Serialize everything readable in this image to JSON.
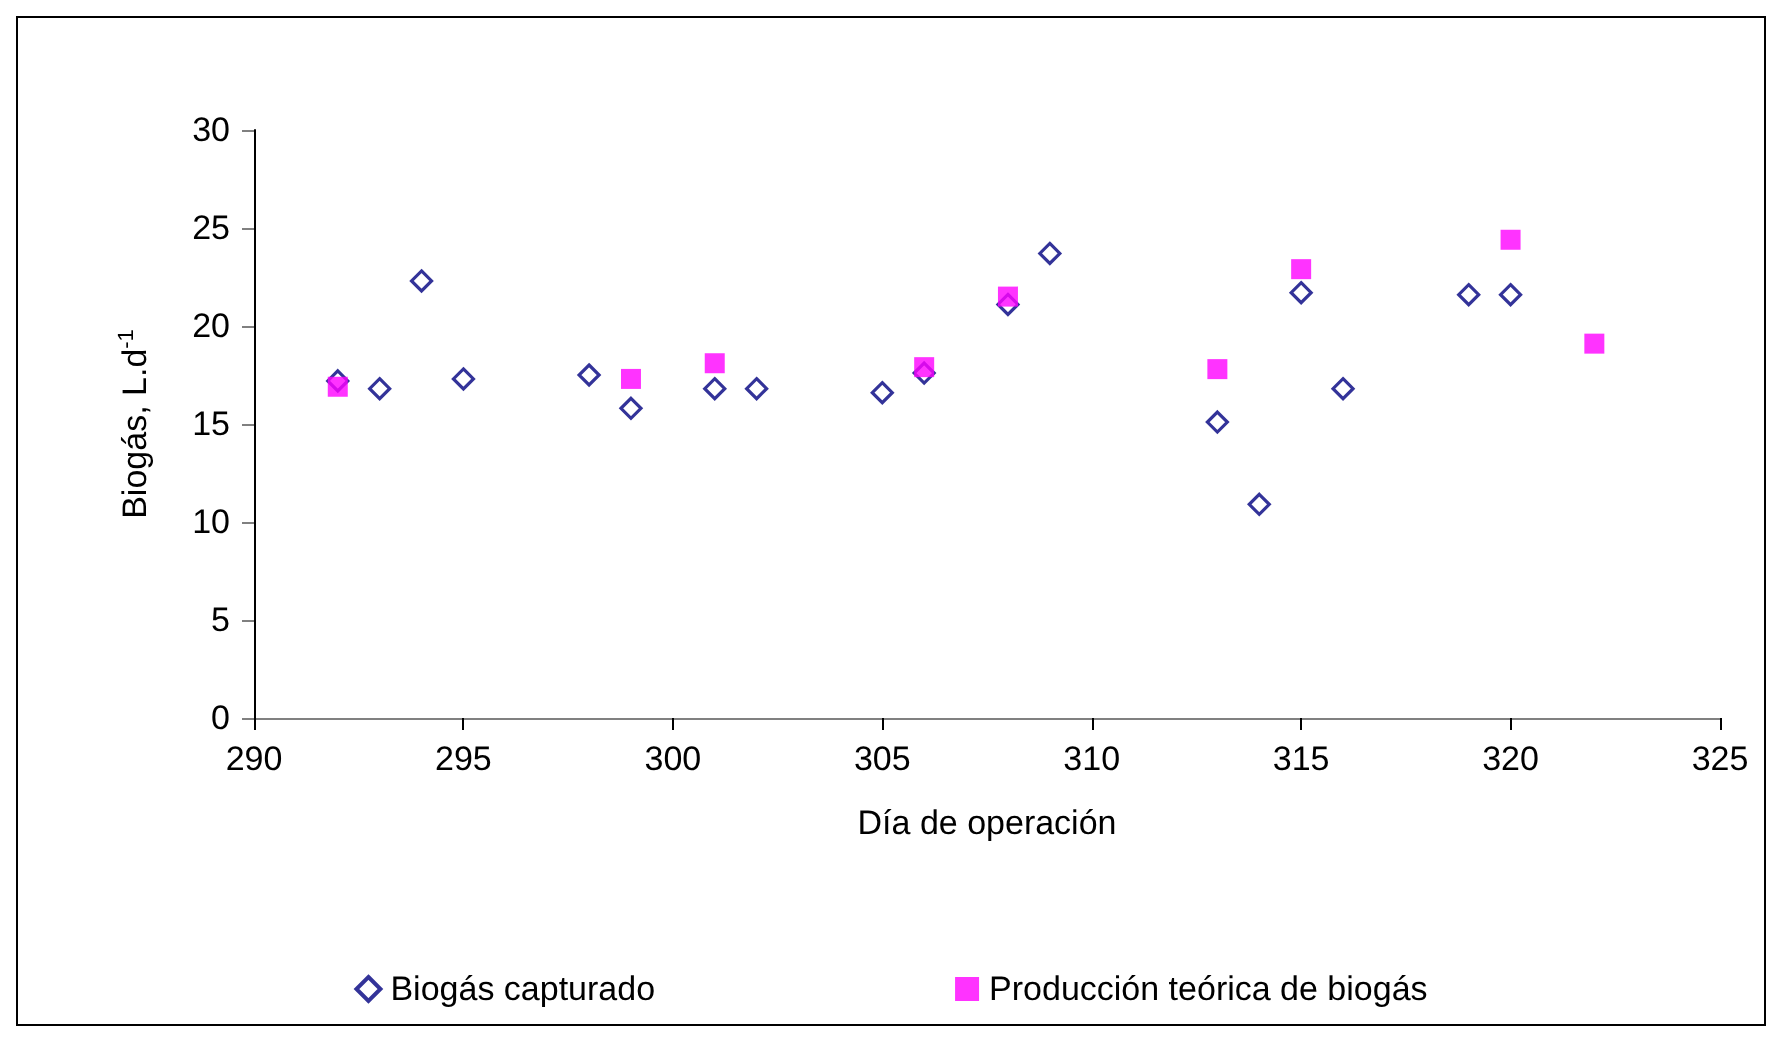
{
  "chart_data": {
    "type": "scatter",
    "xlabel": "Día de operación",
    "ylabel": "Biogás, L.d$^{-1}$",
    "xlim": [
      290,
      325
    ],
    "xticks": [
      290,
      295,
      300,
      305,
      310,
      315,
      320,
      325
    ],
    "ylim": [
      0,
      30
    ],
    "yticks": [
      0,
      5,
      10,
      15,
      20,
      25,
      30
    ],
    "grid": false,
    "legend": "bottom",
    "series": [
      {
        "name": "Biogás capturado",
        "color": "#000080",
        "marker": "diamond",
        "x": [
          292,
          293,
          294,
          295,
          298,
          299,
          301,
          302,
          305,
          306,
          308,
          309,
          313,
          314,
          315,
          316,
          319,
          320
        ],
        "values": [
          17.2,
          16.8,
          22.3,
          17.3,
          17.5,
          15.8,
          16.8,
          16.8,
          16.6,
          17.6,
          21.1,
          23.7,
          15.1,
          10.9,
          21.7,
          16.8,
          21.6,
          21.6
        ]
      },
      {
        "name": "Producción teórica de biogás",
        "color": "#ff00ff",
        "marker": "square",
        "x": [
          292,
          299,
          301,
          306,
          308,
          313,
          315,
          320,
          322
        ],
        "values": [
          16.9,
          17.3,
          18.1,
          17.9,
          21.5,
          17.8,
          22.9,
          24.4,
          19.1
        ]
      }
    ]
  }
}
